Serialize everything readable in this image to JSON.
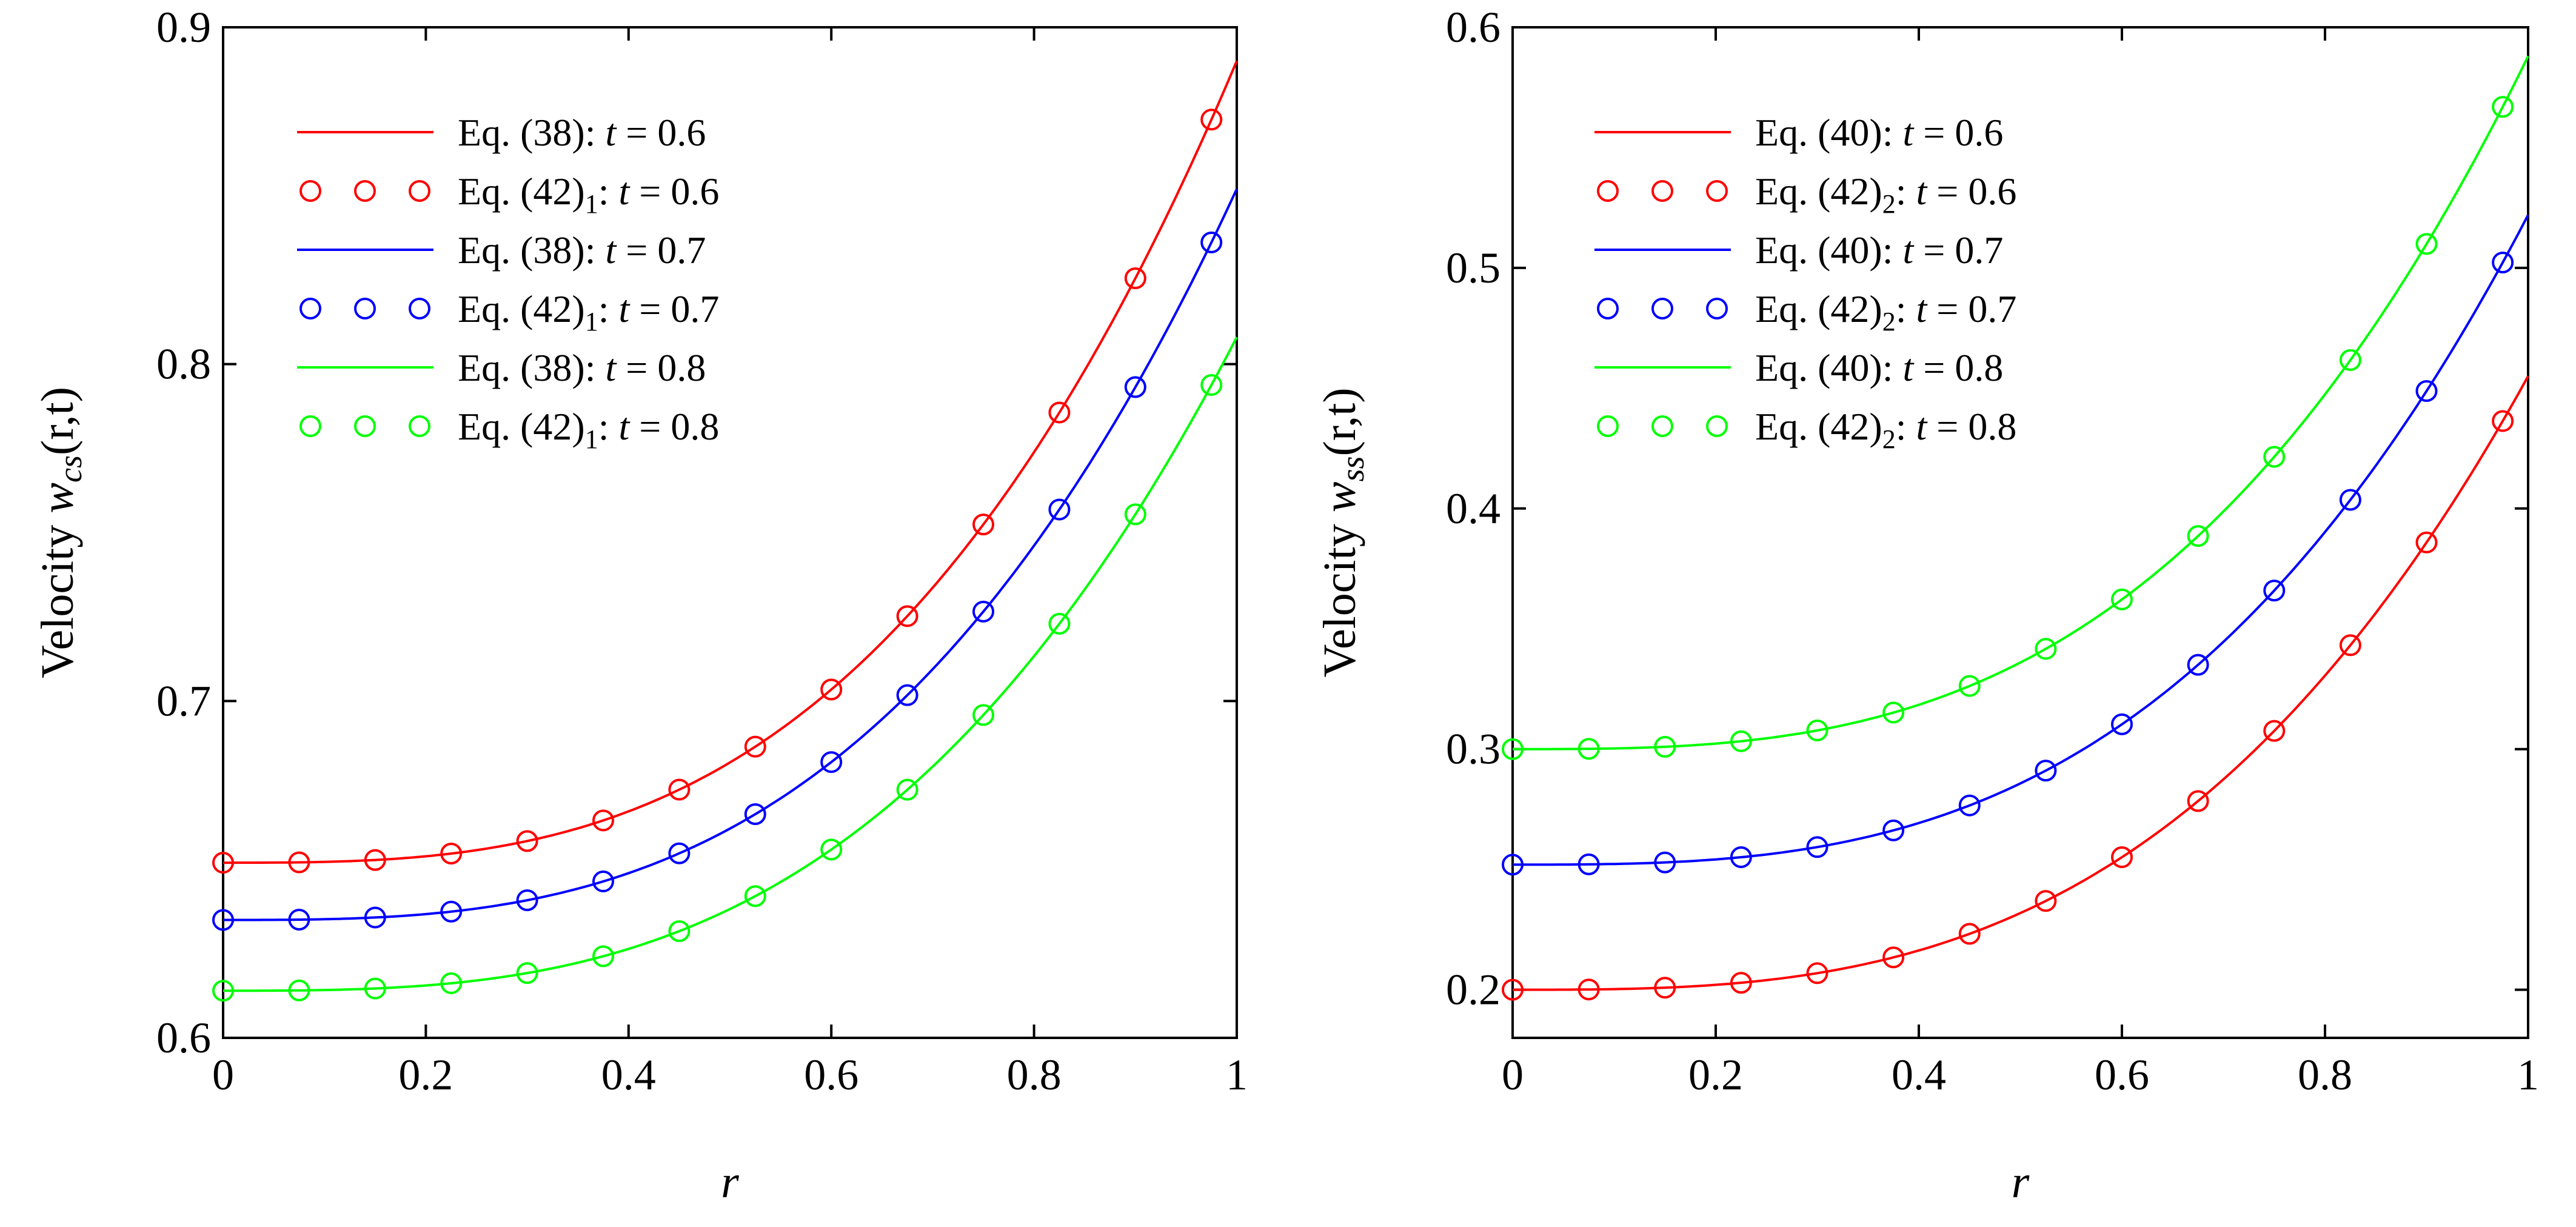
{
  "chart_data": [
    {
      "type": "line",
      "xlabel": "r",
      "ylabel": {
        "prefix": "Velocity ",
        "var": "w",
        "sub": "cs",
        "args": "(r,t)"
      },
      "xlim": [
        0,
        1
      ],
      "ylim": [
        0.6,
        0.9
      ],
      "xticks": [
        0,
        0.2,
        0.4,
        0.6,
        0.8,
        1
      ],
      "xtick_labels": [
        "0",
        "0.2",
        "0.4",
        "0.6",
        "0.8",
        "1"
      ],
      "yticks": [
        0.6,
        0.7,
        0.8,
        0.9
      ],
      "ytick_labels": [
        "0.6",
        "0.7",
        "0.8",
        "0.9"
      ],
      "series": [
        {
          "name": "Eq. (38):  t = 0.6",
          "eq": "Eq. (38):",
          "t": "0.6",
          "kind": "line",
          "color": "#ff0000",
          "base": 0.652,
          "amp": 0.238
        },
        {
          "name": "Eq. (42)1: t = 0.6",
          "eq": "Eq. (42)",
          "sub": "1",
          "t": "0.6",
          "kind": "markers",
          "color": "#ff0000",
          "base": 0.652,
          "amp": 0.238
        },
        {
          "name": "Eq. (38):  t = 0.7",
          "eq": "Eq. (38):",
          "t": "0.7",
          "kind": "line",
          "color": "#0000ff",
          "base": 0.635,
          "amp": 0.217
        },
        {
          "name": "Eq. (42)1: t = 0.7",
          "eq": "Eq. (42)",
          "sub": "1",
          "t": "0.7",
          "kind": "markers",
          "color": "#0000ff",
          "base": 0.635,
          "amp": 0.217
        },
        {
          "name": "Eq. (38):  t = 0.8",
          "eq": "Eq. (38):",
          "t": "0.8",
          "kind": "line",
          "color": "#00ff00",
          "base": 0.614,
          "amp": 0.194
        },
        {
          "name": "Eq. (42)1: t = 0.8",
          "eq": "Eq. (42)",
          "sub": "1",
          "t": "0.8",
          "kind": "markers",
          "color": "#00ff00",
          "base": 0.614,
          "amp": 0.194
        }
      ],
      "curve_form": "y = base + amp * r^3",
      "marker_r": [
        0,
        0.075,
        0.15,
        0.225,
        0.3,
        0.375,
        0.45,
        0.525,
        0.6,
        0.675,
        0.75,
        0.825,
        0.9,
        0.975
      ]
    },
    {
      "type": "line",
      "xlabel": "r",
      "ylabel": {
        "prefix": "Velocity ",
        "var": "w",
        "sub": "ss",
        "args": "(r,t)"
      },
      "xlim": [
        0,
        1
      ],
      "ylim": [
        0.18,
        0.6
      ],
      "xticks": [
        0,
        0.2,
        0.4,
        0.6,
        0.8,
        1
      ],
      "xtick_labels": [
        "0",
        "0.2",
        "0.4",
        "0.6",
        "0.8",
        "1"
      ],
      "yticks": [
        0.2,
        0.3,
        0.4,
        0.5,
        0.6
      ],
      "ytick_labels": [
        "0.2",
        "0.3",
        "0.4",
        "0.5",
        "0.6"
      ],
      "series": [
        {
          "name": "Eq. (40):  t = 0.6",
          "eq": "Eq. (40):",
          "t": "0.6",
          "kind": "line",
          "color": "#ff0000",
          "base": 0.2,
          "amp": 0.255
        },
        {
          "name": "Eq. (42)2: t = 0.6",
          "eq": "Eq. (42)",
          "sub": "2",
          "t": "0.6",
          "kind": "markers",
          "color": "#ff0000",
          "base": 0.2,
          "amp": 0.255
        },
        {
          "name": "Eq. (40):  t = 0.7",
          "eq": "Eq. (40):",
          "t": "0.7",
          "kind": "line",
          "color": "#0000ff",
          "base": 0.252,
          "amp": 0.27
        },
        {
          "name": "Eq. (42)2: t = 0.7",
          "eq": "Eq. (42)",
          "sub": "2",
          "t": "0.7",
          "kind": "markers",
          "color": "#0000ff",
          "base": 0.252,
          "amp": 0.27
        },
        {
          "name": "Eq. (40):  t = 0.8",
          "eq": "Eq. (40):",
          "t": "0.8",
          "kind": "line",
          "color": "#00ff00",
          "base": 0.3,
          "amp": 0.288
        },
        {
          "name": "Eq. (42)2: t = 0.8",
          "eq": "Eq. (42)",
          "sub": "2",
          "t": "0.8",
          "kind": "markers",
          "color": "#00ff00",
          "base": 0.3,
          "amp": 0.288
        }
      ],
      "curve_form": "y = base + amp * r^3",
      "marker_r": [
        0,
        0.075,
        0.15,
        0.225,
        0.3,
        0.375,
        0.45,
        0.525,
        0.6,
        0.675,
        0.75,
        0.825,
        0.9,
        0.975
      ]
    }
  ]
}
